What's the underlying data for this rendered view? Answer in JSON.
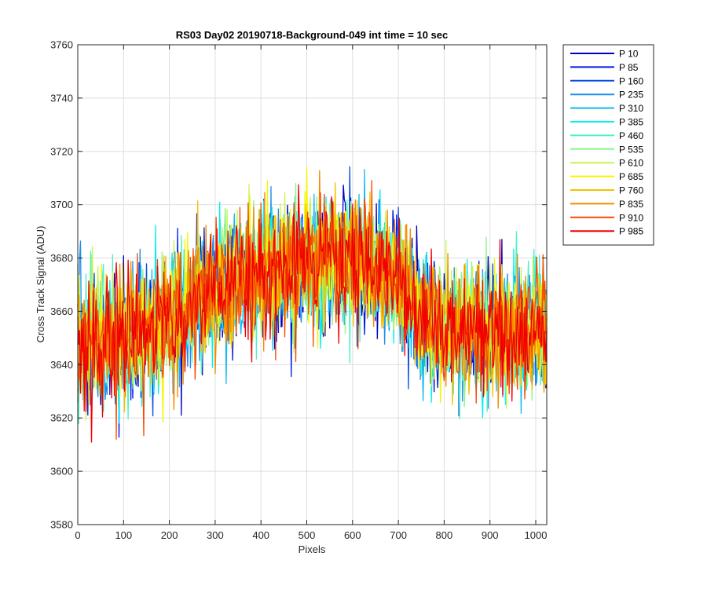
{
  "chart_data": {
    "type": "line",
    "title": "RS03 Day02 20190718-Background-049 int time = 10 sec",
    "xlabel": "Pixels",
    "ylabel": "Cross Track Signal (ADU)",
    "xlim": [
      0,
      1024
    ],
    "ylim": [
      3580,
      3760
    ],
    "xticks": [
      0,
      100,
      200,
      300,
      400,
      500,
      600,
      700,
      800,
      900,
      1000
    ],
    "yticks": [
      3580,
      3600,
      3620,
      3640,
      3660,
      3680,
      3700,
      3720,
      3740,
      3760
    ],
    "grid": true,
    "legend_position": "outside-right",
    "trend_profile": {
      "x": [
        0,
        100,
        200,
        300,
        400,
        500,
        600,
        700,
        750,
        800,
        900,
        1024
      ],
      "y": [
        3648,
        3650,
        3656,
        3668,
        3675,
        3679,
        3679,
        3672,
        3658,
        3653,
        3652,
        3654
      ]
    },
    "noise_amplitude_adu": 15,
    "series": [
      {
        "name": "P 10",
        "color": "#0000bf"
      },
      {
        "name": "P 85",
        "color": "#0018e6"
      },
      {
        "name": "P 160",
        "color": "#0a4fdb"
      },
      {
        "name": "P 235",
        "color": "#1f8ef0"
      },
      {
        "name": "P 310",
        "color": "#14baf2"
      },
      {
        "name": "P 385",
        "color": "#00f0f0"
      },
      {
        "name": "P 460",
        "color": "#4ef0c8"
      },
      {
        "name": "P 535",
        "color": "#8cf58c"
      },
      {
        "name": "P 610",
        "color": "#c8f550"
      },
      {
        "name": "P 685",
        "color": "#f5f500"
      },
      {
        "name": "P 760",
        "color": "#f5c000"
      },
      {
        "name": "P 835",
        "color": "#f58a00"
      },
      {
        "name": "P 910",
        "color": "#f54a00"
      },
      {
        "name": "P 985",
        "color": "#f00000"
      }
    ]
  }
}
